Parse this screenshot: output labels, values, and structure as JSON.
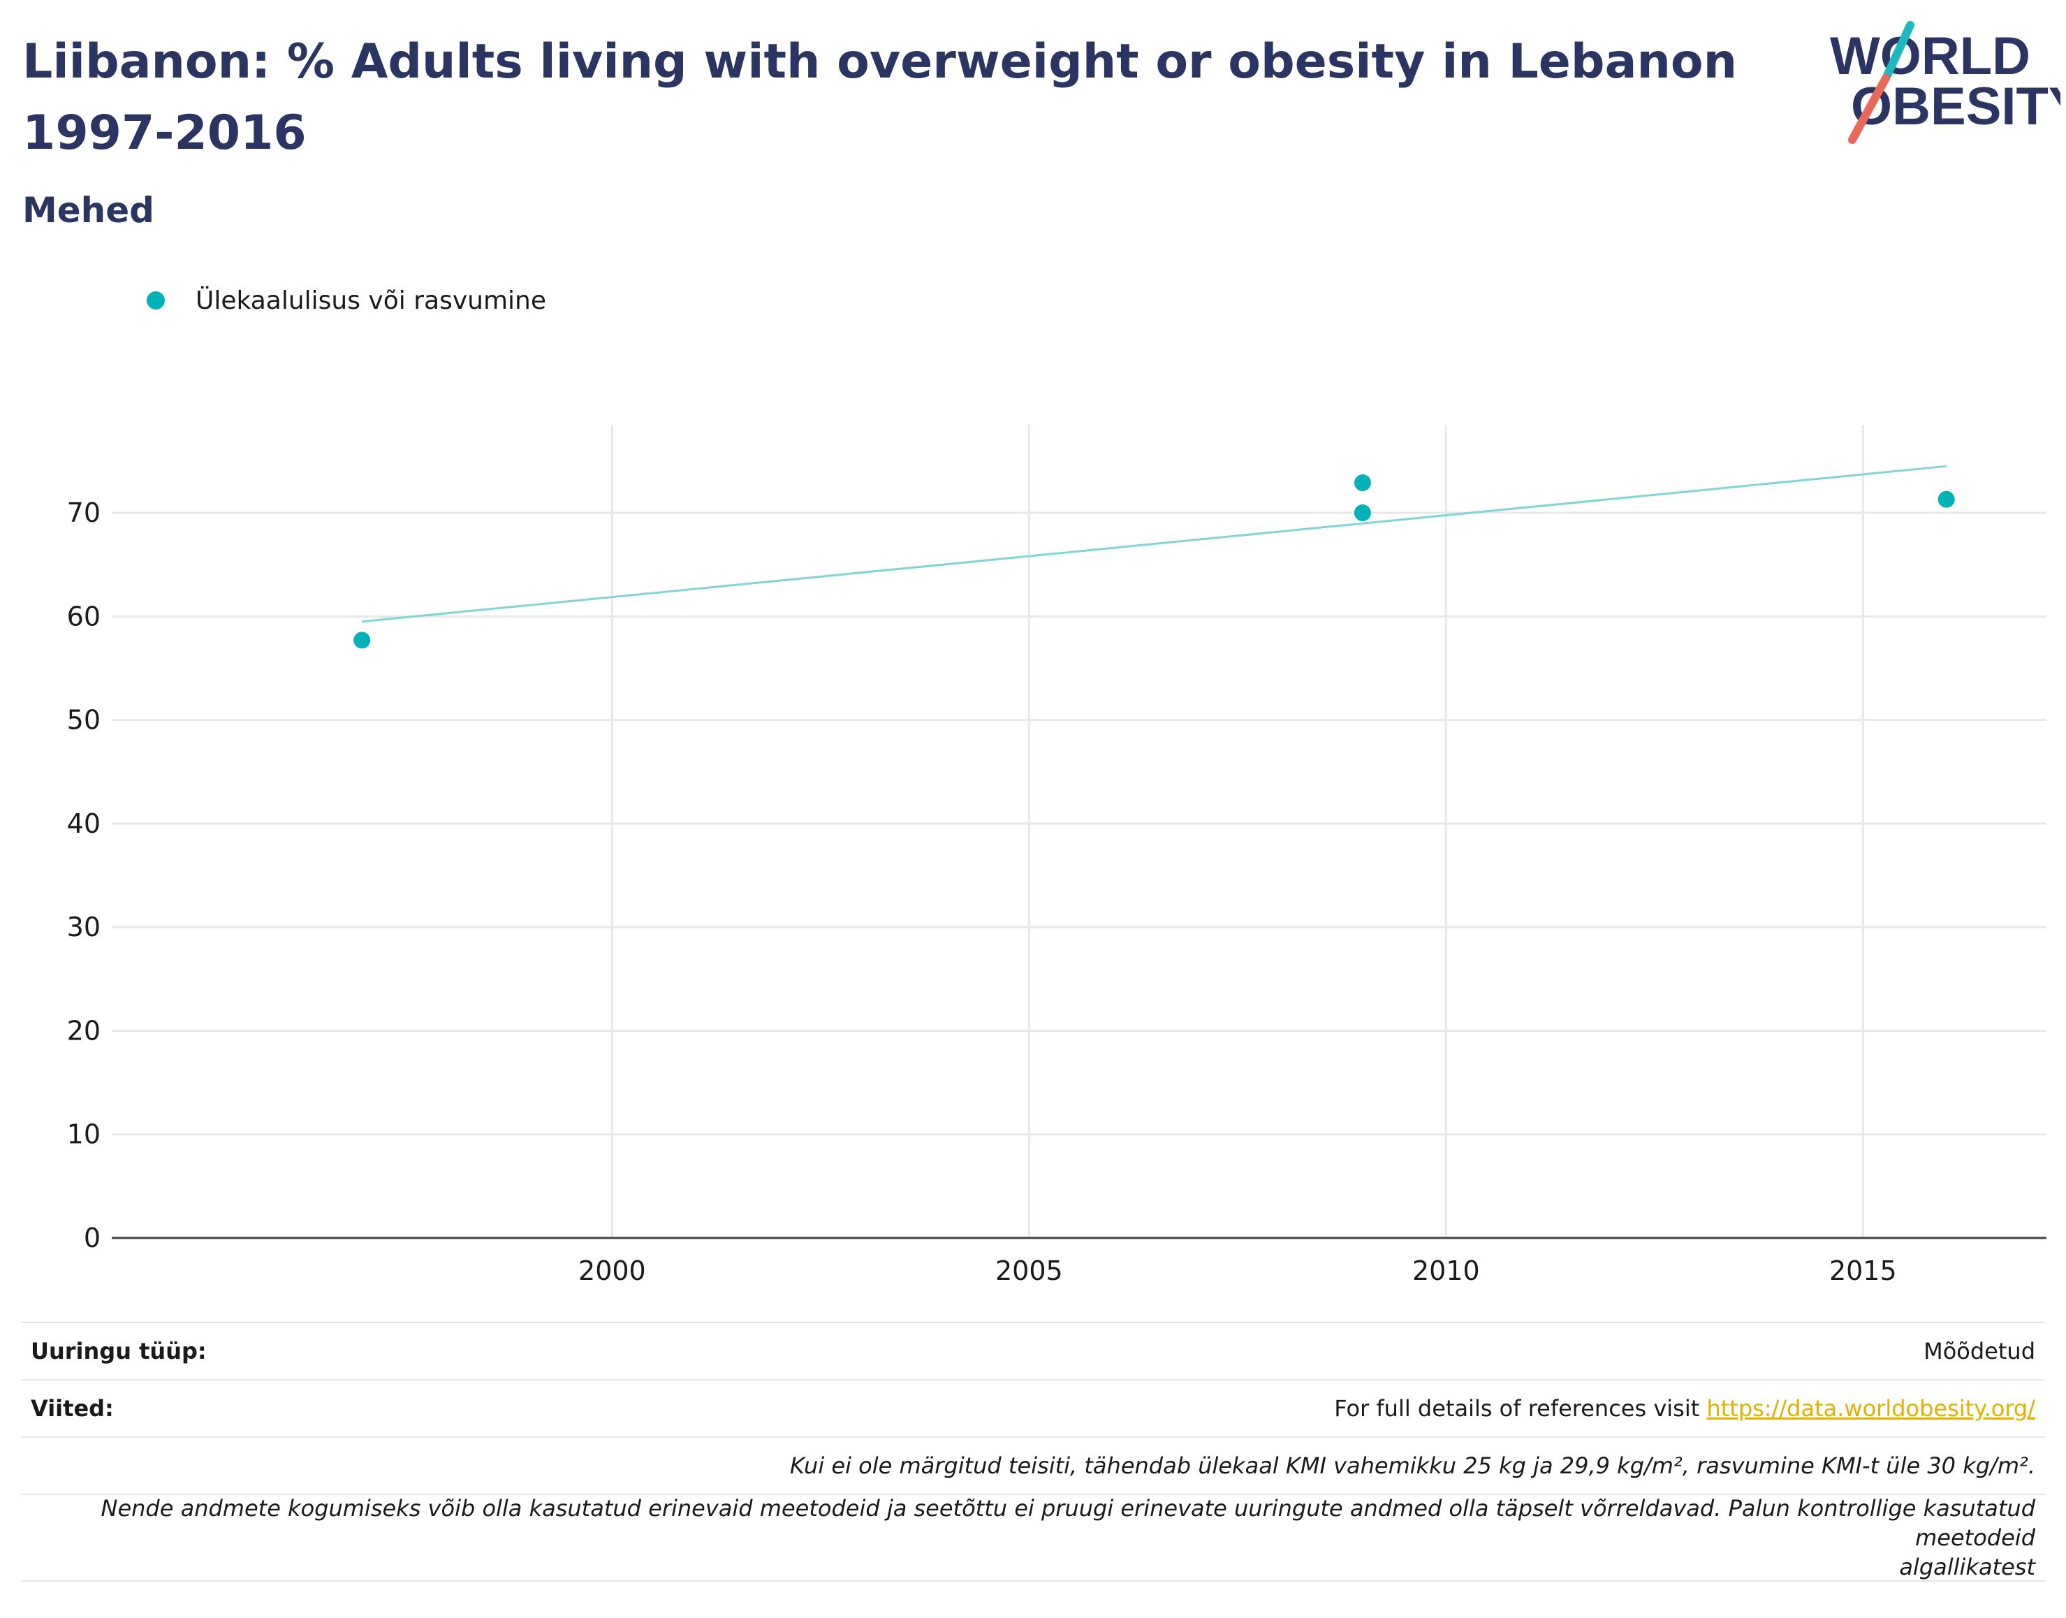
{
  "header": {
    "title": "Liibanon: % Adults living with overweight or obesity in Lebanon 1997-2016",
    "subtitle": "Mehed"
  },
  "logo": {
    "line1": "WORLD",
    "line2": "OBESITY"
  },
  "colors": {
    "accent": "#00b2b8",
    "trend": "#7fd6d9",
    "title": "#2b3561",
    "link": "#e3b000",
    "logo_red": "#e8695b",
    "logo_teal": "#1fb8bf"
  },
  "chart_data": {
    "type": "scatter",
    "series": [
      {
        "name": "Ülekaalulisus või rasvumine",
        "x": [
          1997,
          2009,
          2009,
          2016
        ],
        "y": [
          57.7,
          72.9,
          70.0,
          71.3
        ]
      }
    ],
    "trendline": {
      "x": [
        1997,
        2016
      ],
      "y": [
        59.5,
        74.5
      ]
    },
    "xlim": [
      1994,
      2017.2
    ],
    "ylim": [
      0,
      78.5
    ],
    "xticks": [
      "2000",
      "2005",
      "2010",
      "2015"
    ],
    "yticks": [
      "0",
      "10",
      "20",
      "30",
      "40",
      "50",
      "60",
      "70"
    ],
    "grid": true,
    "legend_position": "top-left"
  },
  "footer": {
    "survey_type_label": "Uuringu tüüp:",
    "survey_type_value": "Mõõdetud",
    "references_label": "Viited:",
    "references_text": "For full details of references visit ",
    "references_link": "https://data.worldobesity.org/",
    "note1": "Kui ei ole märgitud teisiti, tähendab ülekaal KMI vahemikku 25 kg ja 29,9 kg/m², rasvumine KMI-t üle 30 kg/m².",
    "note2_line1": "Nende andmete kogumiseks võib olla kasutatud erinevaid meetodeid ja seetõttu ei pruugi erinevate uuringute andmed olla täpselt võrreldavad. Palun kontrollige kasutatud meetodeid",
    "note2_line2": "algallikatest"
  }
}
